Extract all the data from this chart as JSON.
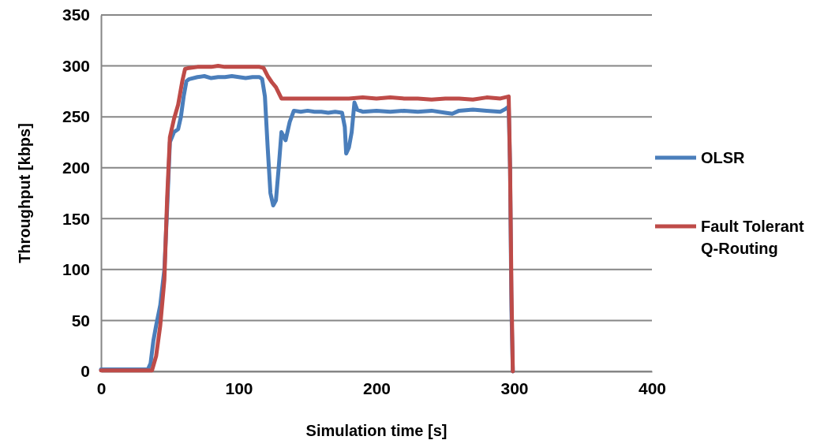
{
  "chart_data": {
    "type": "line",
    "xlabel": "Simulation time [s]",
    "ylabel": "Throughput [kbps]",
    "xlim": [
      0,
      400
    ],
    "xticks": [
      0,
      100,
      200,
      300,
      400
    ],
    "ylim": [
      0,
      350
    ],
    "yticks": [
      0,
      50,
      100,
      150,
      200,
      250,
      300,
      350
    ],
    "grid": "y",
    "legend": "right",
    "marker": "none",
    "line_style": "solid",
    "series": [
      {
        "name": "OLSR",
        "color": "#4a7ebb",
        "x": [
          0,
          34,
          36,
          38,
          40,
          43,
          46,
          48,
          50,
          53,
          56,
          58,
          60,
          62,
          64,
          70,
          75,
          80,
          85,
          90,
          95,
          100,
          105,
          110,
          115,
          117,
          119,
          121,
          123,
          125,
          127,
          129,
          131,
          134,
          137,
          140,
          145,
          150,
          155,
          160,
          165,
          170,
          175,
          177,
          178,
          180,
          182,
          184,
          186,
          190,
          200,
          210,
          220,
          230,
          240,
          250,
          255,
          260,
          270,
          280,
          290,
          294,
          296,
          297,
          298,
          299
        ],
        "values": [
          2,
          2,
          8,
          30,
          45,
          65,
          100,
          160,
          225,
          235,
          238,
          250,
          270,
          285,
          287,
          289,
          290,
          288,
          289,
          289,
          290,
          289,
          288,
          289,
          289,
          287,
          270,
          220,
          175,
          163,
          168,
          200,
          235,
          227,
          245,
          256,
          255,
          256,
          255,
          255,
          254,
          255,
          254,
          240,
          214,
          220,
          235,
          264,
          257,
          255,
          256,
          255,
          256,
          255,
          256,
          254,
          253,
          256,
          257,
          256,
          255,
          258,
          260,
          200,
          60,
          0
        ]
      },
      {
        "name": "Fault Tolerant\nQ-Routing",
        "color": "#be4b48",
        "x": [
          0,
          37,
          40,
          43,
          46,
          48,
          50,
          53,
          56,
          59,
          61,
          64,
          70,
          75,
          80,
          85,
          90,
          95,
          100,
          105,
          110,
          115,
          118,
          121,
          124,
          127,
          131,
          140,
          150,
          160,
          170,
          180,
          190,
          200,
          210,
          220,
          230,
          240,
          250,
          260,
          270,
          280,
          290,
          296,
          297,
          298,
          299
        ],
        "values": [
          1,
          1,
          15,
          45,
          90,
          170,
          230,
          248,
          262,
          285,
          297,
          298,
          299,
          299,
          299,
          300,
          299,
          299,
          299,
          299,
          299,
          299,
          298,
          290,
          284,
          279,
          268,
          268,
          268,
          268,
          268,
          268,
          269,
          268,
          269,
          268,
          268,
          267,
          268,
          268,
          267,
          269,
          268,
          270,
          200,
          80,
          0
        ]
      }
    ]
  }
}
